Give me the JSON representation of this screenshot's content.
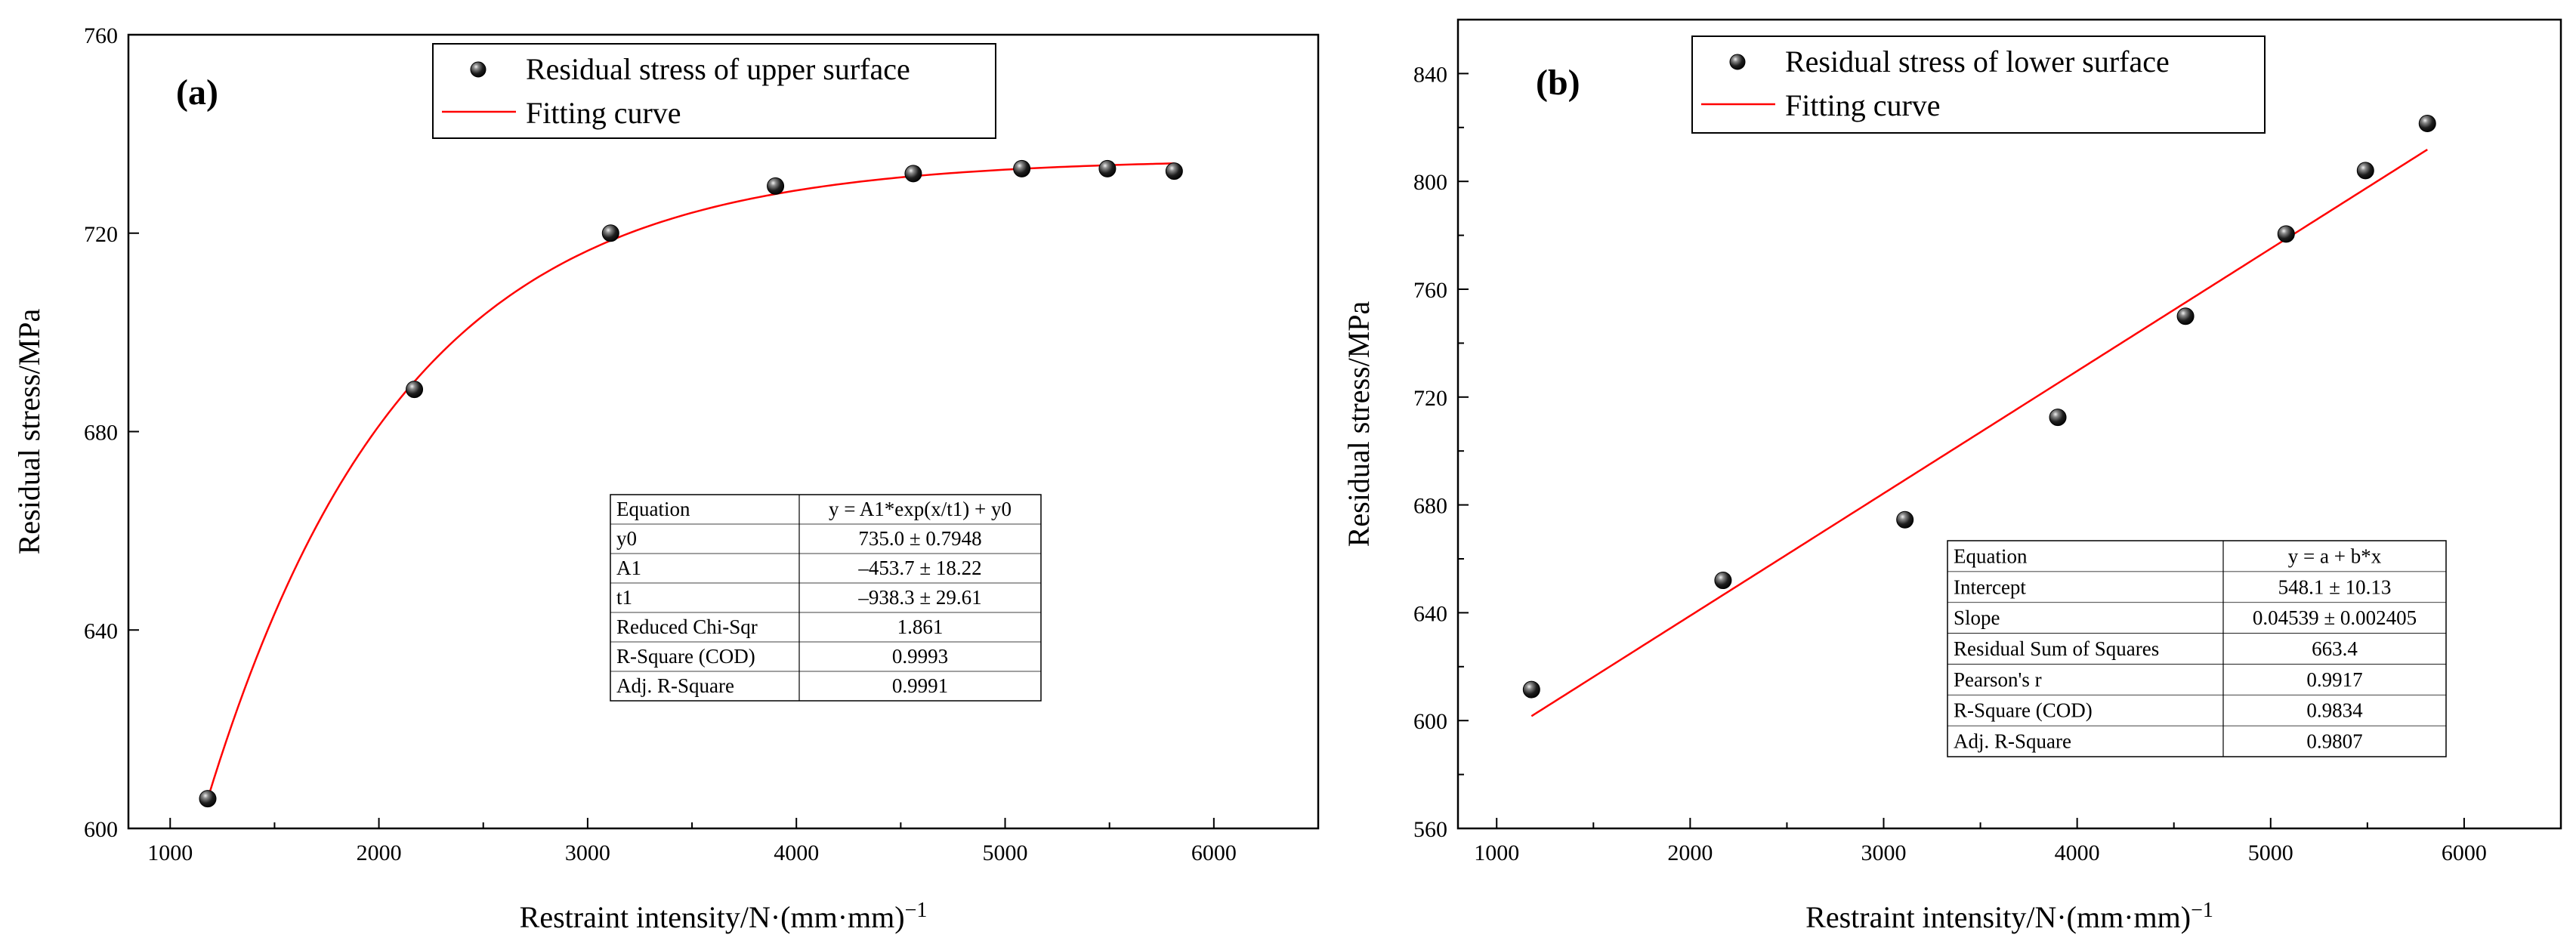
{
  "chart_data": [
    {
      "type": "scatter",
      "panel_label": "(a)",
      "xlabel_main": "Restraint intensity/N·(mm·mm)",
      "xlabel_sup": "−1",
      "ylabel": "Residual stress/MPa",
      "xlim": [
        800,
        6500
      ],
      "ylim": [
        600,
        760
      ],
      "xticks": [
        1000,
        2000,
        3000,
        4000,
        5000,
        6000
      ],
      "yticks": [
        600,
        640,
        680,
        720,
        760
      ],
      "grid": false,
      "legend_position": "top-center",
      "series": [
        {
          "name": "Residual stress of upper surface",
          "kind": "points",
          "x": [
            1180,
            2170,
            3110,
            3900,
            4560,
            5080,
            5490,
            5810
          ],
          "y": [
            606,
            688.5,
            720,
            729.5,
            732,
            733,
            733,
            732.5
          ]
        },
        {
          "name": "Fitting curve",
          "kind": "fit",
          "color": "#ff0000",
          "model": "exp",
          "A1": -453.7,
          "t1": -938.3,
          "y0": 735.0,
          "x_range": [
            1180,
            5810
          ]
        }
      ],
      "stats_table": [
        [
          "Equation",
          "y = A1*exp(x/t1) + y0"
        ],
        [
          "y0",
          "735.0 ± 0.7948"
        ],
        [
          "A1",
          "–453.7 ± 18.22"
        ],
        [
          "t1",
          "–938.3 ± 29.61"
        ],
        [
          "Reduced Chi-Sqr",
          "1.861"
        ],
        [
          "R-Square (COD)",
          "0.9993"
        ],
        [
          "Adj. R-Square",
          "0.9991"
        ]
      ]
    },
    {
      "type": "scatter",
      "panel_label": "(b)",
      "xlabel_main": "Restraint intensity/N·(mm·mm)",
      "xlabel_sup": "−1",
      "ylabel": "Residual stress/MPa",
      "xlim": [
        800,
        6500
      ],
      "ylim": [
        560,
        860
      ],
      "xticks": [
        1000,
        2000,
        3000,
        4000,
        5000,
        6000
      ],
      "yticks": [
        560,
        600,
        640,
        680,
        720,
        760,
        800,
        840
      ],
      "grid": false,
      "legend_position": "top-center",
      "series": [
        {
          "name": "Residual stress of lower surface",
          "kind": "points",
          "x": [
            1180,
            2170,
            3110,
            3900,
            4560,
            5080,
            5490,
            5810
          ],
          "y": [
            611.5,
            652,
            674.5,
            712.5,
            750,
            780.5,
            804,
            821.5
          ]
        },
        {
          "name": "Fitting curve",
          "kind": "fit",
          "color": "#ff0000",
          "model": "linear",
          "a": 548.1,
          "b": 0.04539,
          "x_range": [
            1180,
            5810
          ]
        }
      ],
      "stats_table": [
        [
          "Equation",
          "y = a + b*x"
        ],
        [
          "Intercept",
          "548.1 ± 10.13"
        ],
        [
          "Slope",
          "0.04539 ± 0.002405"
        ],
        [
          "Residual Sum of Squares",
          "663.4"
        ],
        [
          "Pearson's r",
          "0.9917"
        ],
        [
          "R-Square (COD)",
          "0.9834"
        ],
        [
          "Adj. R-Square",
          "0.9807"
        ]
      ]
    }
  ]
}
